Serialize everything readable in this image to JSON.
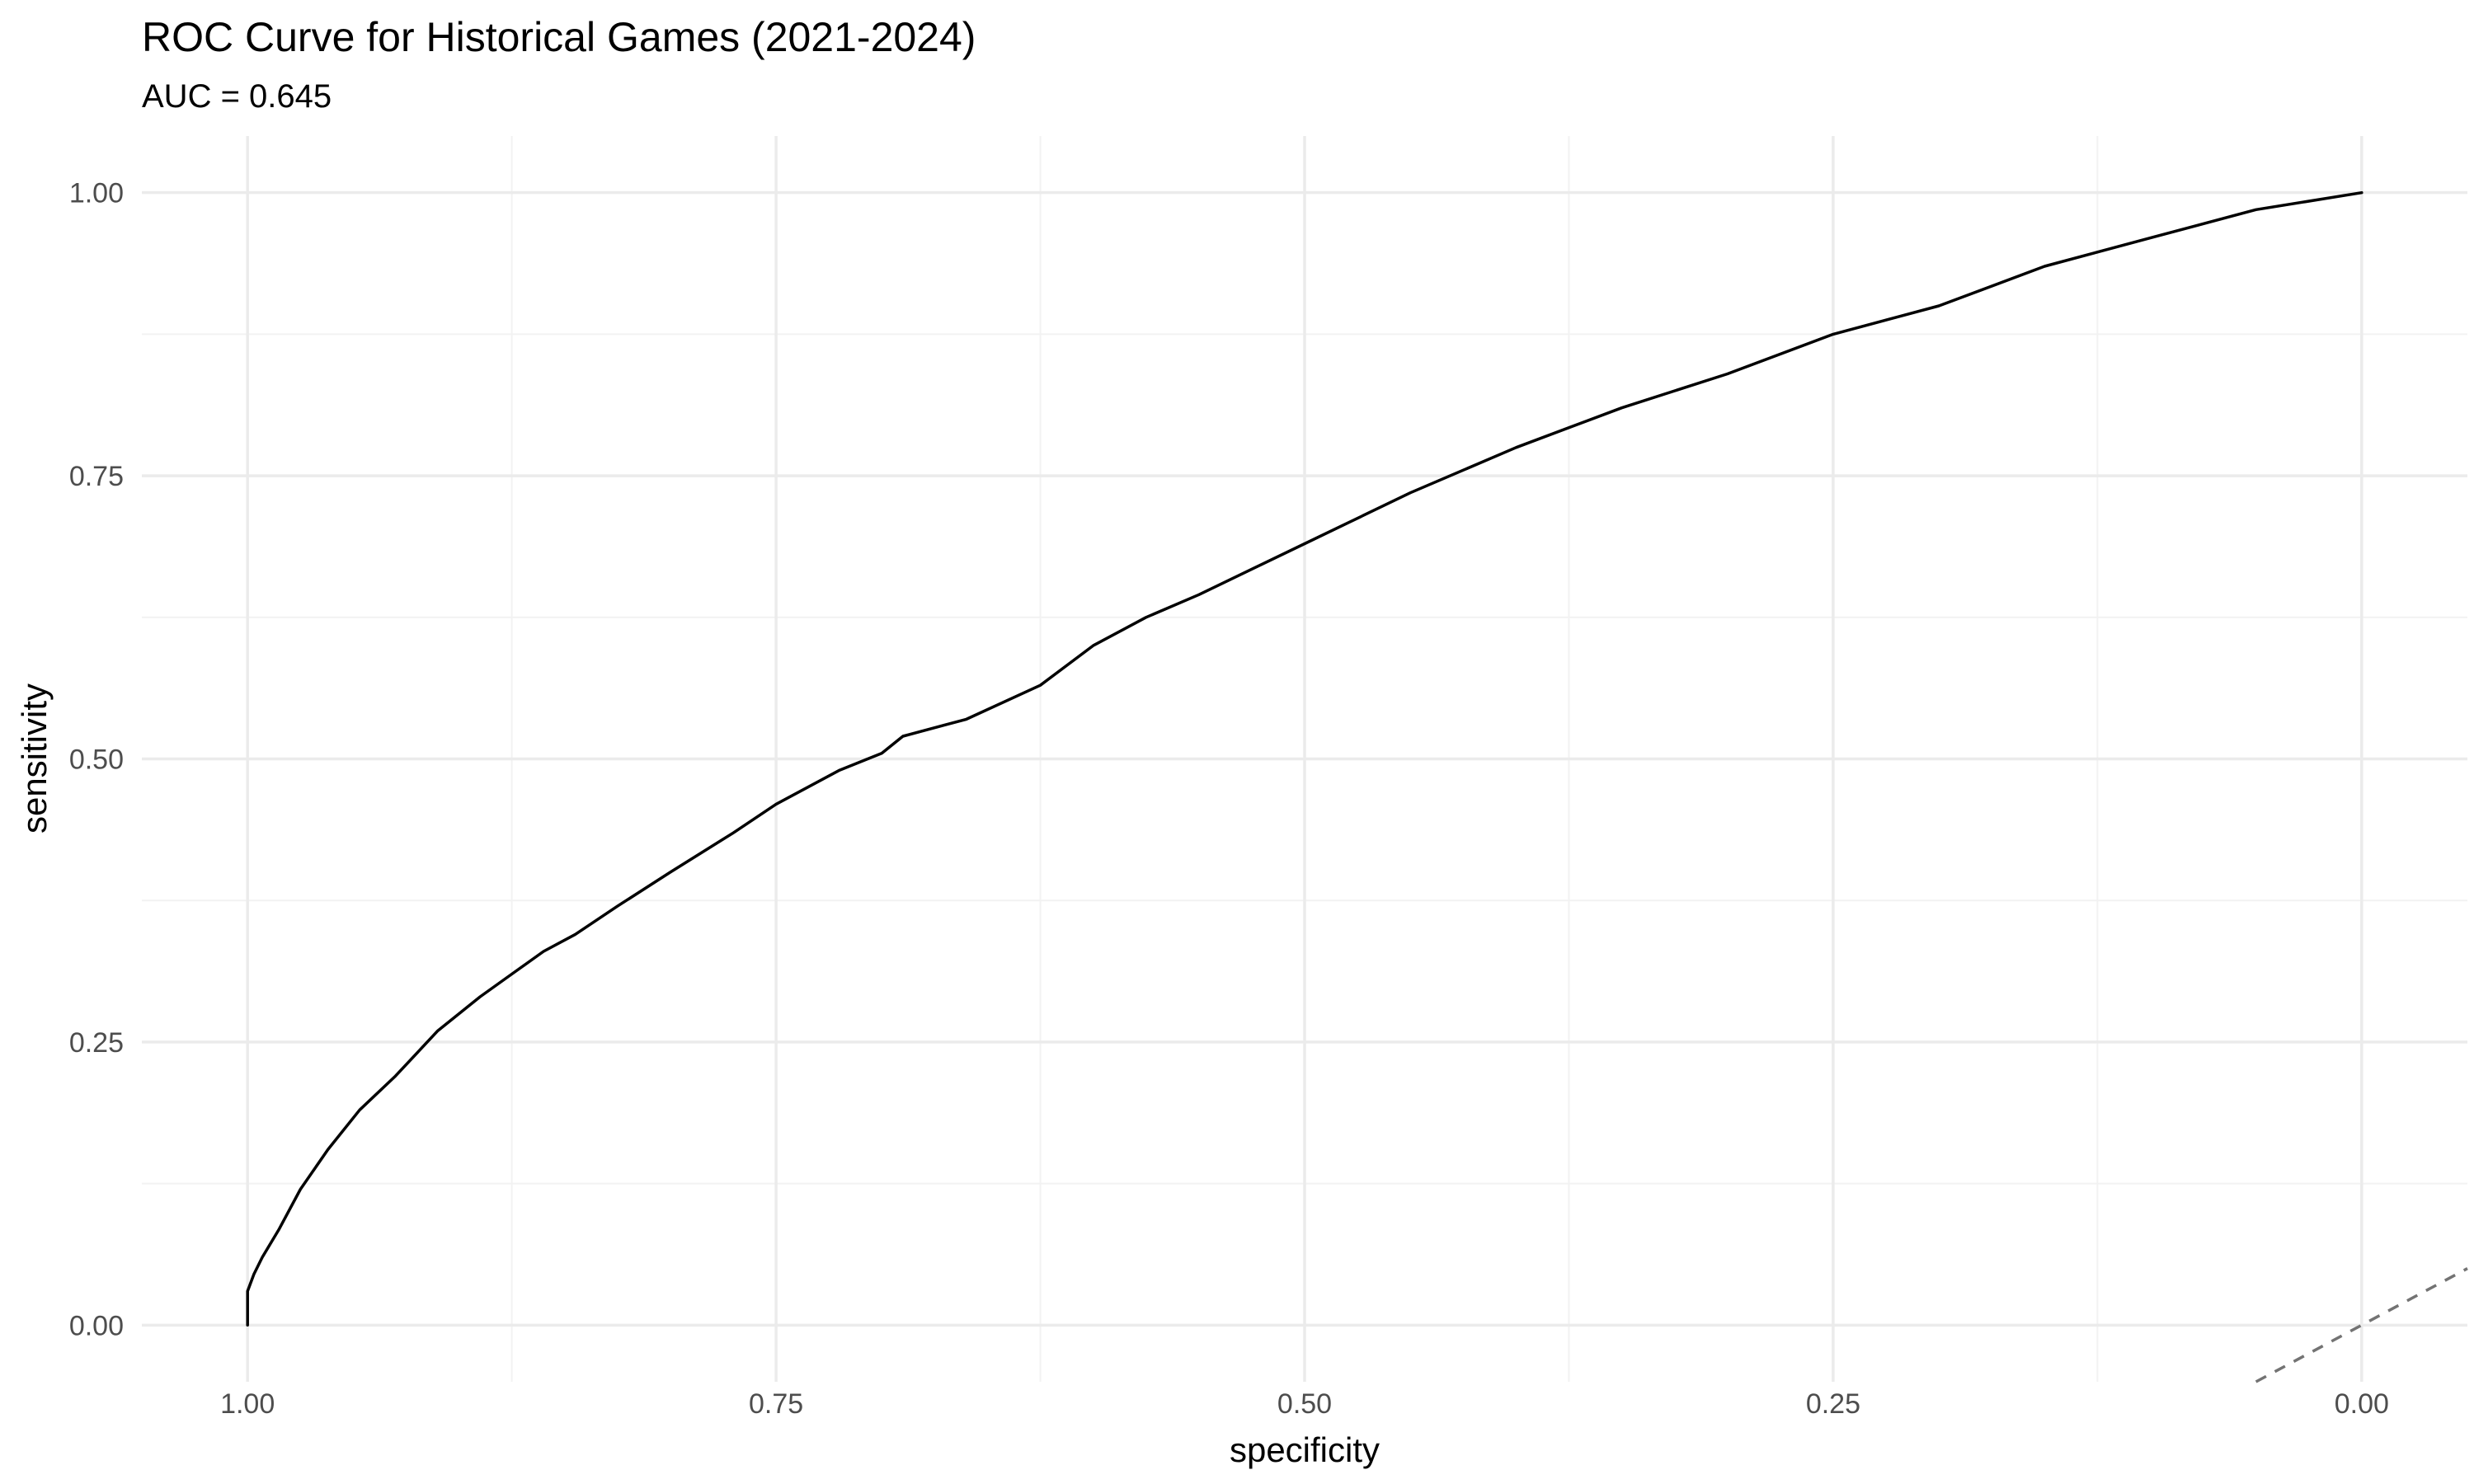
{
  "chart_data": {
    "type": "line",
    "title": "ROC Curve for Historical Games (2021-2024)",
    "subtitle": "AUC = 0.645",
    "xlabel": "specificity",
    "ylabel": "sensitivity",
    "x_reversed": true,
    "xlim": [
      1.05,
      -0.05
    ],
    "ylim": [
      -0.05,
      1.05
    ],
    "x_ticks": [
      1.0,
      0.75,
      0.5,
      0.25,
      0.0
    ],
    "x_tick_labels": [
      "1.00",
      "0.75",
      "0.50",
      "0.25",
      "0.00"
    ],
    "y_ticks": [
      0.0,
      0.25,
      0.5,
      0.75,
      1.0
    ],
    "y_tick_labels": [
      "0.00",
      "0.25",
      "0.50",
      "0.75",
      "1.00"
    ],
    "x_minor_ticks": [
      0.875,
      0.625,
      0.375,
      0.125
    ],
    "y_minor_ticks": [
      0.125,
      0.375,
      0.625,
      0.875
    ],
    "grid": true,
    "legend": "none",
    "colors": {
      "curve": "#000000",
      "reference": "#737373",
      "grid_major": "#ebebeb",
      "grid_minor": "#f2f2f2"
    },
    "series": [
      {
        "specificity": [
          1.0,
          1.0,
          0.997,
          0.993,
          0.985,
          0.975,
          0.962,
          0.947,
          0.93,
          0.91,
          0.89,
          0.875,
          0.86,
          0.845,
          0.825,
          0.8,
          0.77,
          0.75,
          0.72,
          0.7,
          0.69,
          0.66,
          0.625,
          0.6,
          0.575,
          0.55,
          0.5,
          0.45,
          0.4,
          0.35,
          0.3,
          0.25,
          0.2,
          0.15,
          0.1,
          0.05,
          0.0
        ],
        "sensitivity": [
          0.0,
          0.03,
          0.045,
          0.06,
          0.085,
          0.12,
          0.155,
          0.19,
          0.22,
          0.26,
          0.29,
          0.31,
          0.33,
          0.345,
          0.37,
          0.4,
          0.435,
          0.46,
          0.49,
          0.505,
          0.52,
          0.535,
          0.565,
          0.6,
          0.625,
          0.645,
          0.69,
          0.735,
          0.775,
          0.81,
          0.84,
          0.875,
          0.9,
          0.935,
          0.96,
          0.985,
          1.0
        ]
      },
      {
        "specificity": [
          0.05,
          -0.05
        ],
        "sensitivity": [
          -0.05,
          0.05
        ],
        "style": "dashed"
      }
    ]
  }
}
